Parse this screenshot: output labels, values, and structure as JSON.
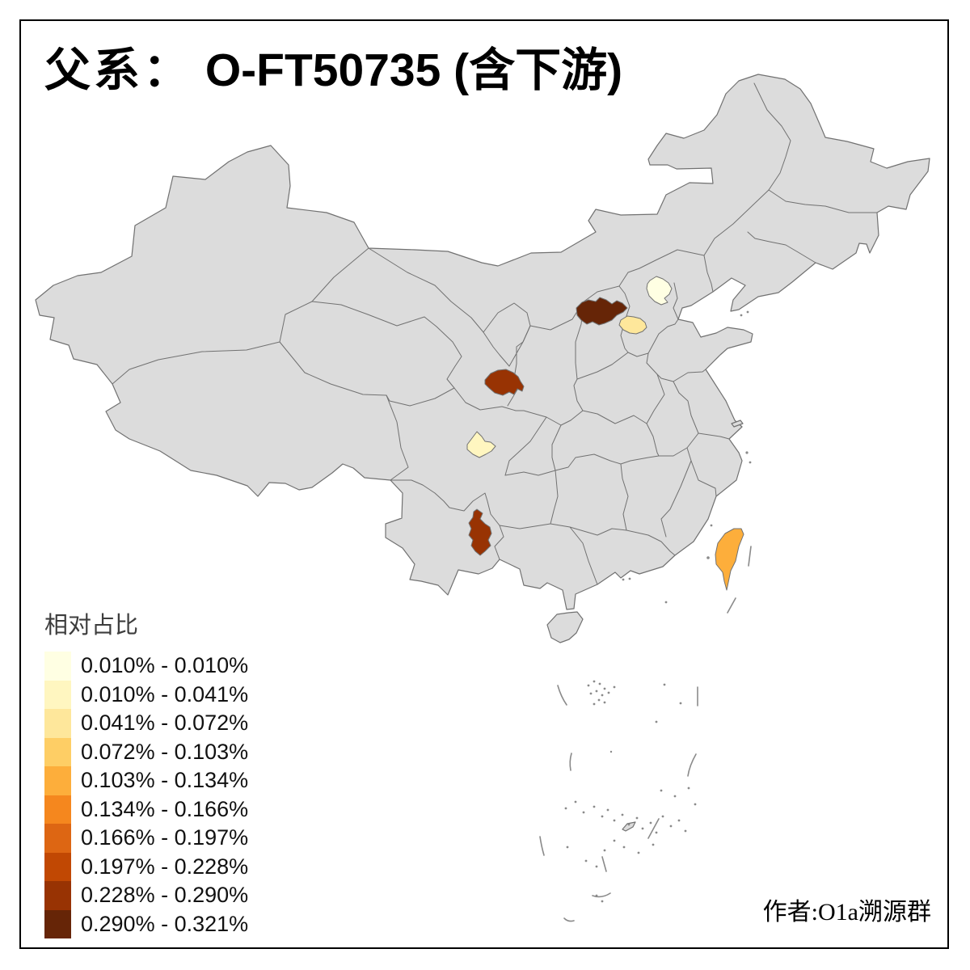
{
  "title": {
    "prefix": "父系：",
    "rest": "O-FT50735 (含下游)"
  },
  "legend": {
    "title": "相对占比",
    "classes": [
      {
        "label": "0.010% - 0.010%",
        "color": "#FFFFE3"
      },
      {
        "label": "0.010% - 0.041%",
        "color": "#FFF6C0"
      },
      {
        "label": "0.041% - 0.072%",
        "color": "#FEE79B"
      },
      {
        "label": "0.072% - 0.103%",
        "color": "#FECE65"
      },
      {
        "label": "0.103% - 0.134%",
        "color": "#FDAE3B"
      },
      {
        "label": "0.134% - 0.166%",
        "color": "#F5871E"
      },
      {
        "label": "0.166% - 0.197%",
        "color": "#DD6613"
      },
      {
        "label": "0.197% - 0.228%",
        "color": "#C14803"
      },
      {
        "label": "0.228% - 0.290%",
        "color": "#983303"
      },
      {
        "label": "0.290% - 0.321%",
        "color": "#662507"
      }
    ]
  },
  "author": "作者:O1a溯源群",
  "map": {
    "background": "#FFFFFF",
    "land_color": "#DCDCDC",
    "border_color": "#717171",
    "islet_color": "#8A8A8A",
    "frame_color": "#000000",
    "regions": [
      {
        "area": "north-shanxi-prefecture",
        "class_index": 9
      },
      {
        "area": "beijing",
        "class_index": 0
      },
      {
        "area": "central-hebei-prefecture",
        "class_index": 2
      },
      {
        "area": "southeast-gansu-prefecture",
        "class_index": 8
      },
      {
        "area": "chengdu-prefecture",
        "class_index": 1
      },
      {
        "area": "central-yunnan-prefecture",
        "class_index": 8
      },
      {
        "area": "taiwan",
        "class_index": 4
      }
    ]
  },
  "chart_data": {
    "type": "choropleth",
    "legend_title": "相对占比",
    "bins": [
      "0.010%-0.010%",
      "0.010%-0.041%",
      "0.041%-0.072%",
      "0.072%-0.103%",
      "0.103%-0.134%",
      "0.134%-0.166%",
      "0.166%-0.197%",
      "0.197%-0.228%",
      "0.228%-0.290%",
      "0.290%-0.321%"
    ],
    "colored_areas": [
      {
        "area": "north-shanxi-prefecture",
        "bin": "0.290%-0.321%"
      },
      {
        "area": "beijing",
        "bin": "0.010%-0.010%"
      },
      {
        "area": "central-hebei-prefecture",
        "bin": "0.041%-0.072%"
      },
      {
        "area": "southeast-gansu-prefecture",
        "bin": "0.228%-0.290%"
      },
      {
        "area": "chengdu-prefecture",
        "bin": "0.010%-0.041%"
      },
      {
        "area": "central-yunnan-prefecture",
        "bin": "0.228%-0.290%"
      },
      {
        "area": "taiwan",
        "bin": "0.103%-0.134%"
      }
    ]
  }
}
